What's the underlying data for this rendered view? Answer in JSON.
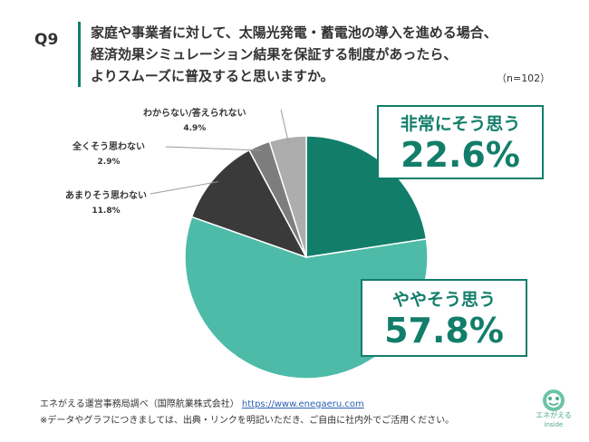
{
  "question": {
    "number": "Q9",
    "lines": [
      "家庭や事業者に対して、太陽光発電・蓄電池の導入を進める場合、",
      "経済効果シミュレーション結果を保証する制度があったら、",
      "よりスムーズに普及すると思いますか。"
    ],
    "sample": "（n=102）"
  },
  "chart_data": {
    "type": "pie",
    "categories": [
      "非常にそう思う",
      "ややそう思う",
      "あまりそう思わない",
      "全くそう思わない",
      "わからない/答えられない"
    ],
    "values": [
      22.6,
      57.8,
      11.8,
      2.9,
      4.9
    ],
    "value_labels": [
      "22.6%",
      "57.8%",
      "11.8%",
      "2.9%",
      "4.9%"
    ],
    "colors": [
      "#127e6a",
      "#4dbba7",
      "#3a3a3a",
      "#7d7d7d",
      "#adadad"
    ],
    "start": "12 o'clock",
    "direction": "clockwise"
  },
  "footer": {
    "source": "エネがえる運営事務局調べ（国際航業株式会社）",
    "url": "https://www.enegaeru.com",
    "note": "※データやグラフにつきましては、出典・リンクを明記いただき、ご自由に社内外でご活用ください。"
  },
  "logo": {
    "name": "エネがえる",
    "sub": "inside",
    "icon": "enegaeru-frog-logo-icon"
  }
}
